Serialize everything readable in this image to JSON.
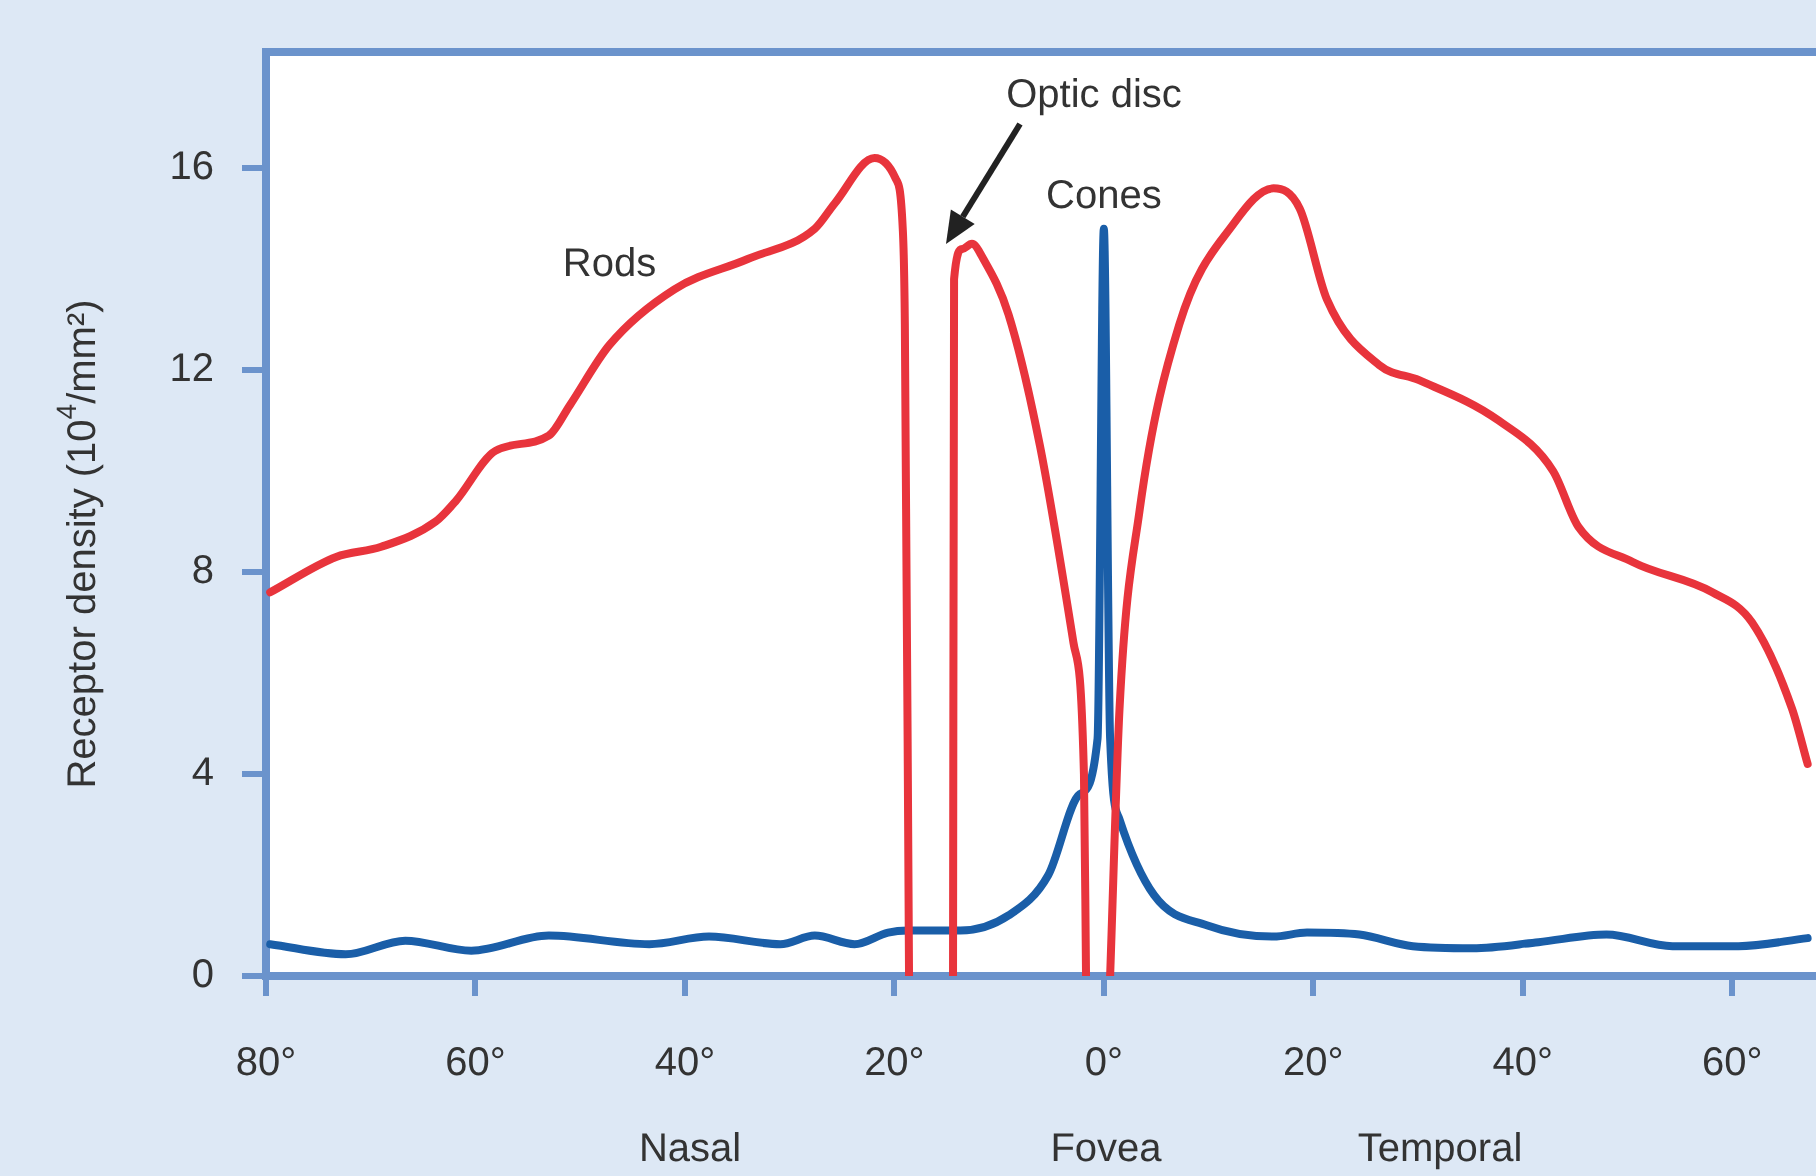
{
  "chart_data": {
    "type": "line",
    "ylabel": "Receptor density (10$^{4}$/mm²)",
    "xlim": [
      -80,
      68
    ],
    "ylim": [
      0,
      18.3
    ],
    "xticks": [
      {
        "value": -80,
        "label": "80°"
      },
      {
        "value": -60,
        "label": "60°"
      },
      {
        "value": -40,
        "label": "40°"
      },
      {
        "value": -20,
        "label": "20°"
      },
      {
        "value": 0,
        "label": "0°"
      },
      {
        "value": 20,
        "label": "20°"
      },
      {
        "value": 40,
        "label": "40°"
      },
      {
        "value": 60,
        "label": "60°"
      }
    ],
    "yticks": [
      0,
      4,
      8,
      12,
      16
    ],
    "grid": false,
    "legend": false,
    "marker": "none",
    "line_style": "solid",
    "annotations": [
      "Optic disc",
      "Nasal",
      "Fovea",
      "Temporal"
    ],
    "series": [
      {
        "name": "Rods",
        "color": "#e8343c",
        "x": [
          -79.6,
          -73.3,
          -69,
          -63.8,
          -61.9,
          -58.1,
          -53,
          -51,
          -47.2,
          -41,
          -34,
          -27.6,
          -25.7,
          -21.9,
          -19.9,
          -19.2,
          -19,
          -18.6,
          -16.5,
          -14.4,
          -14.3,
          -13.5,
          -12.6,
          -11.5,
          -9.1,
          -6.1,
          -2.9,
          -1.9,
          -1.7,
          -0.5,
          0.6,
          1.5,
          3.4,
          7.2,
          12.4,
          16.2,
          18.7,
          21.3,
          26.3,
          30.1,
          37.7,
          42.9,
          45.3,
          50.5,
          58.1,
          61.9,
          65.7,
          67.2
        ],
        "values": [
          7.6,
          8.3,
          8.5,
          9.0,
          9.4,
          10.4,
          10.7,
          11.3,
          12.5,
          13.6,
          14.2,
          14.8,
          15.3,
          16.2,
          15.8,
          14.8,
          12.9,
          0,
          null,
          0,
          13.8,
          14.4,
          14.5,
          14.2,
          13.1,
          10.5,
          6.6,
          4.0,
          0,
          null,
          0,
          5.3,
          9.2,
          12.9,
          14.9,
          15.6,
          15.2,
          13.4,
          12.1,
          11.8,
          11.0,
          10.0,
          8.9,
          8.2,
          7.6,
          7.0,
          5.3,
          4.2
        ]
      },
      {
        "name": "Cones",
        "color": "#1a5ea8",
        "x": [
          -79.6,
          -72.4,
          -66.7,
          -60.4,
          -53,
          -43.4,
          -37.7,
          -30.9,
          -27.6,
          -23.8,
          -20.6,
          -18.7,
          -13.7,
          -9.1,
          -5.3,
          -2.3,
          -0.6,
          0,
          0.6,
          1.5,
          4.8,
          9.9,
          16.2,
          19.4,
          24.4,
          29.5,
          35.2,
          41.5,
          48,
          54.3,
          60.6,
          67.2
        ],
        "values": [
          0.63,
          0.43,
          0.7,
          0.5,
          0.8,
          0.63,
          0.78,
          0.63,
          0.8,
          0.63,
          0.86,
          0.9,
          0.9,
          1.2,
          2.0,
          3.6,
          4.7,
          14.8,
          4.7,
          3.1,
          1.6,
          1.0,
          0.78,
          0.86,
          0.82,
          0.59,
          0.55,
          0.67,
          0.82,
          0.59,
          0.59,
          0.75
        ]
      }
    ]
  }
}
